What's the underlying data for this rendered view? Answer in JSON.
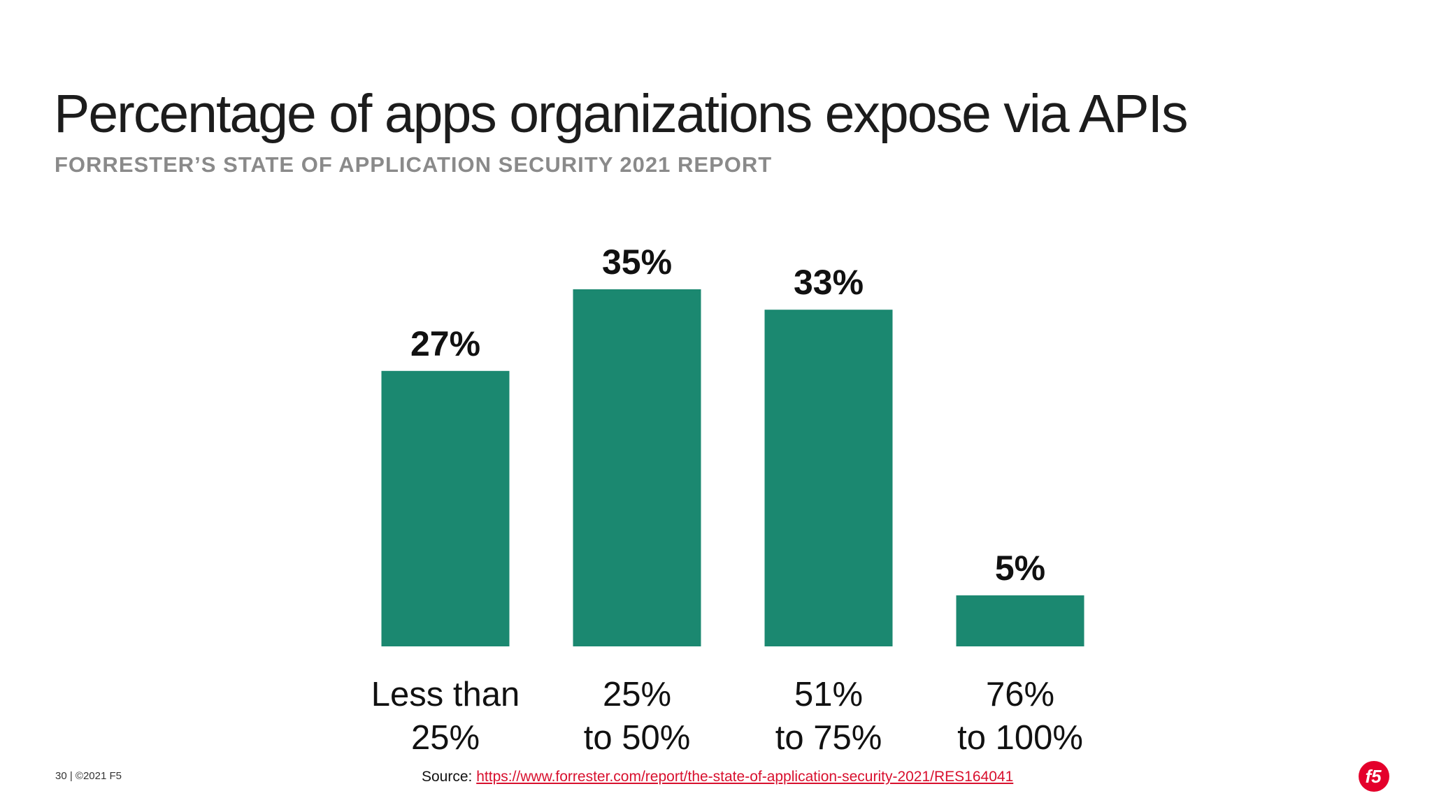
{
  "slide": {
    "title": "Percentage of apps organizations expose via APIs",
    "subtitle": "FORRESTER’S STATE OF APPLICATION SECURITY 2021 REPORT",
    "page_info": "30 | ©2021 F5",
    "source_label": "Source:",
    "source_url": "https://www.forrester.com/report/the-state-of-application-security-2021/RES164041",
    "logo_text": "f5"
  },
  "colors": {
    "bar": "#1b8870",
    "link": "#d8102e",
    "logo": "#e4002b"
  },
  "chart_data": {
    "type": "bar",
    "title": "Percentage of apps organizations expose via APIs",
    "subtitle": "FORRESTER’S STATE OF APPLICATION SECURITY 2021 REPORT",
    "categories": [
      [
        "Less than",
        "25%"
      ],
      [
        "25%",
        "to 50%"
      ],
      [
        "51%",
        "to 75%"
      ],
      [
        "76%",
        "to 100%"
      ]
    ],
    "values": [
      27,
      35,
      33,
      5
    ],
    "value_labels": [
      "27%",
      "35%",
      "33%",
      "5%"
    ],
    "ylim": [
      0,
      35
    ],
    "grid": false,
    "legend": "none"
  }
}
